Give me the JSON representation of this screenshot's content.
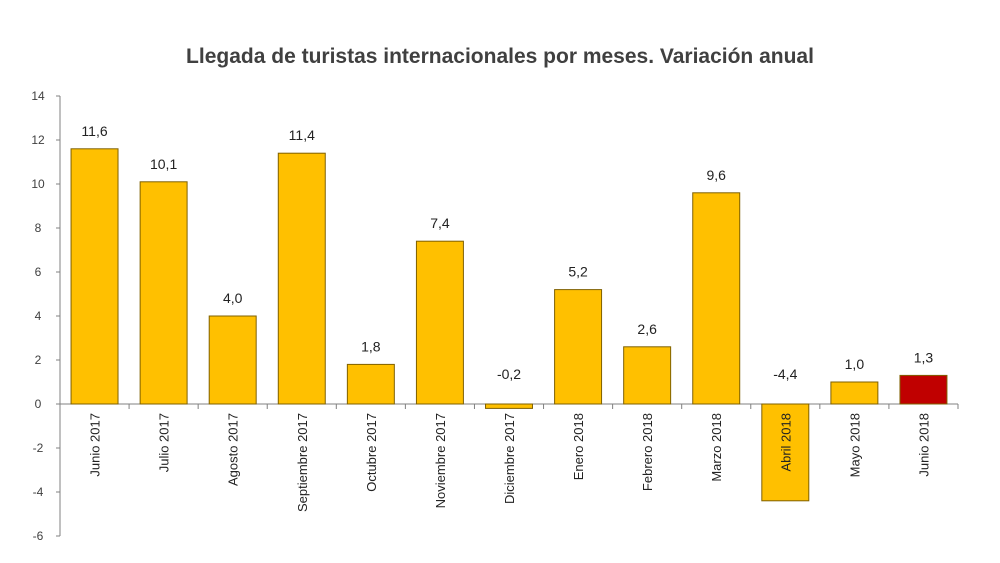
{
  "chart_data": {
    "type": "bar",
    "title": "Llegada de turistas internacionales por meses. Variación anual",
    "xlabel": "",
    "ylabel": "",
    "ylim": [
      -6,
      14
    ],
    "yticks": [
      14,
      12,
      10,
      8,
      6,
      4,
      2,
      0,
      -2,
      -4,
      -6
    ],
    "grid": false,
    "categories": [
      "Junio 2017",
      "Julio 2017",
      "Agosto 2017",
      "Septiembre 2017",
      "Octubre 2017",
      "Noviembre 2017",
      "Diciembre 2017",
      "Enero 2018",
      "Febrero 2018",
      "Marzo 2018",
      "Abril 2018",
      "Mayo 2018",
      "Junio 2018"
    ],
    "values": [
      11.6,
      10.1,
      4.0,
      11.4,
      1.8,
      7.4,
      -0.2,
      5.2,
      2.6,
      9.6,
      -4.4,
      1.0,
      1.3
    ],
    "value_labels": [
      "11,6",
      "10,1",
      "4,0",
      "11,4",
      "1,8",
      "7,4",
      "-0,2",
      "5,2",
      "2,6",
      "9,6",
      "-4,4",
      "1,0",
      "1,3"
    ],
    "colors": {
      "bar": "#FFC000",
      "highlight": "#C00000",
      "bar_border": "#7F6000",
      "axis": "#808080"
    },
    "highlight_index": 12
  }
}
